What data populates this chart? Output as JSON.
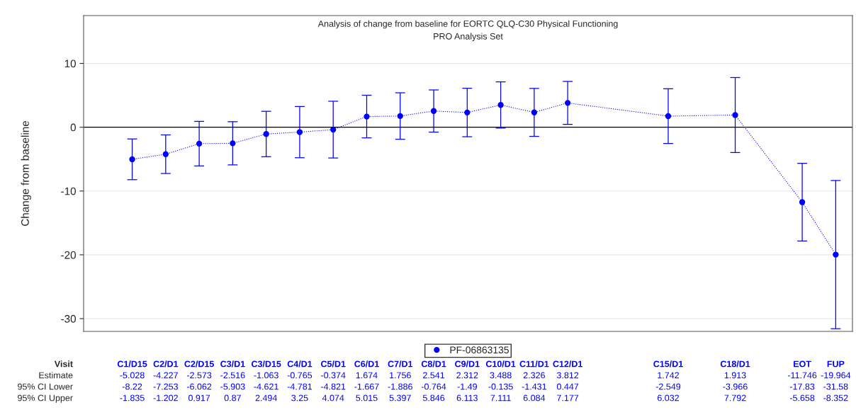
{
  "chart_data": {
    "type": "line",
    "title": "Analysis of change from baseline for EORTC QLQ-C30 Physical Functioning",
    "subtitle": "PRO Analysis Set",
    "ylabel": "Change from baseline",
    "categories": [
      "C1/D15",
      "C2/D1",
      "C2/D15",
      "C3/D1",
      "C3/D15",
      "C4/D1",
      "C5/D1",
      "C6/D1",
      "C7/D1",
      "C8/D1",
      "C9/D1",
      "C10/D1",
      "C11/D1",
      "C12/D1",
      null,
      null,
      "C15/D1",
      null,
      "C18/D1",
      null,
      "EOT",
      "FUP"
    ],
    "series": [
      {
        "name": "PF-06863135",
        "color": "#0000ff",
        "values": [
          -5.028,
          -4.227,
          -2.573,
          -2.516,
          -1.063,
          -0.765,
          -0.374,
          1.674,
          1.756,
          2.541,
          2.312,
          3.488,
          2.326,
          3.812,
          null,
          null,
          1.742,
          null,
          1.913,
          null,
          -11.746,
          -19.964
        ],
        "errors": [
          [
            -8.22,
            -1.835
          ],
          [
            -7.253,
            -1.202
          ],
          [
            -6.062,
            0.917
          ],
          [
            -5.903,
            0.87
          ],
          [
            -4.621,
            2.494
          ],
          [
            -4.781,
            3.25
          ],
          [
            -4.821,
            4.074
          ],
          [
            -1.667,
            5.015
          ],
          [
            -1.886,
            5.397
          ],
          [
            -0.764,
            5.846
          ],
          [
            -1.49,
            6.113
          ],
          [
            -0.135,
            7.111
          ],
          [
            -1.431,
            6.084
          ],
          [
            0.447,
            7.177
          ],
          null,
          null,
          [
            -2.549,
            6.032
          ],
          null,
          [
            -3.966,
            7.792
          ],
          null,
          [
            -17.83,
            -5.658
          ],
          [
            -31.58,
            -8.352
          ]
        ]
      }
    ],
    "annotations": [
      "Visit",
      "Estimate",
      "95% CI Lower",
      "95% CI Upper",
      "-8.22",
      "-7.253",
      "-6.062",
      "-5.903",
      "-4.621",
      "-4.781",
      "-4.821",
      "-1.667",
      "-1.886",
      "-0.764",
      "-1.49",
      "-0.135",
      "-1.431",
      "0.447",
      "-2.549",
      "-3.966",
      "-17.83",
      "-31.58",
      "-1.835",
      "-1.202",
      "0.917",
      "0.87",
      "2.494",
      "3.25",
      "4.074",
      "5.015",
      "5.397",
      "5.846",
      "6.113",
      "7.111",
      "6.084",
      "7.177",
      "6.032",
      "7.792",
      "-5.658",
      "-8.352"
    ],
    "data_labels": true,
    "ylim": [
      -32,
      17.5
    ],
    "yticks": [
      -30,
      -20,
      -10,
      0,
      10
    ],
    "ref_lines": [
      {
        "axis": "y",
        "value": 0,
        "color": "#000000"
      }
    ],
    "grid": "y",
    "legend": "bottom",
    "marker": "circle",
    "line_style": "dotted",
    "tick_labels": "y"
  }
}
